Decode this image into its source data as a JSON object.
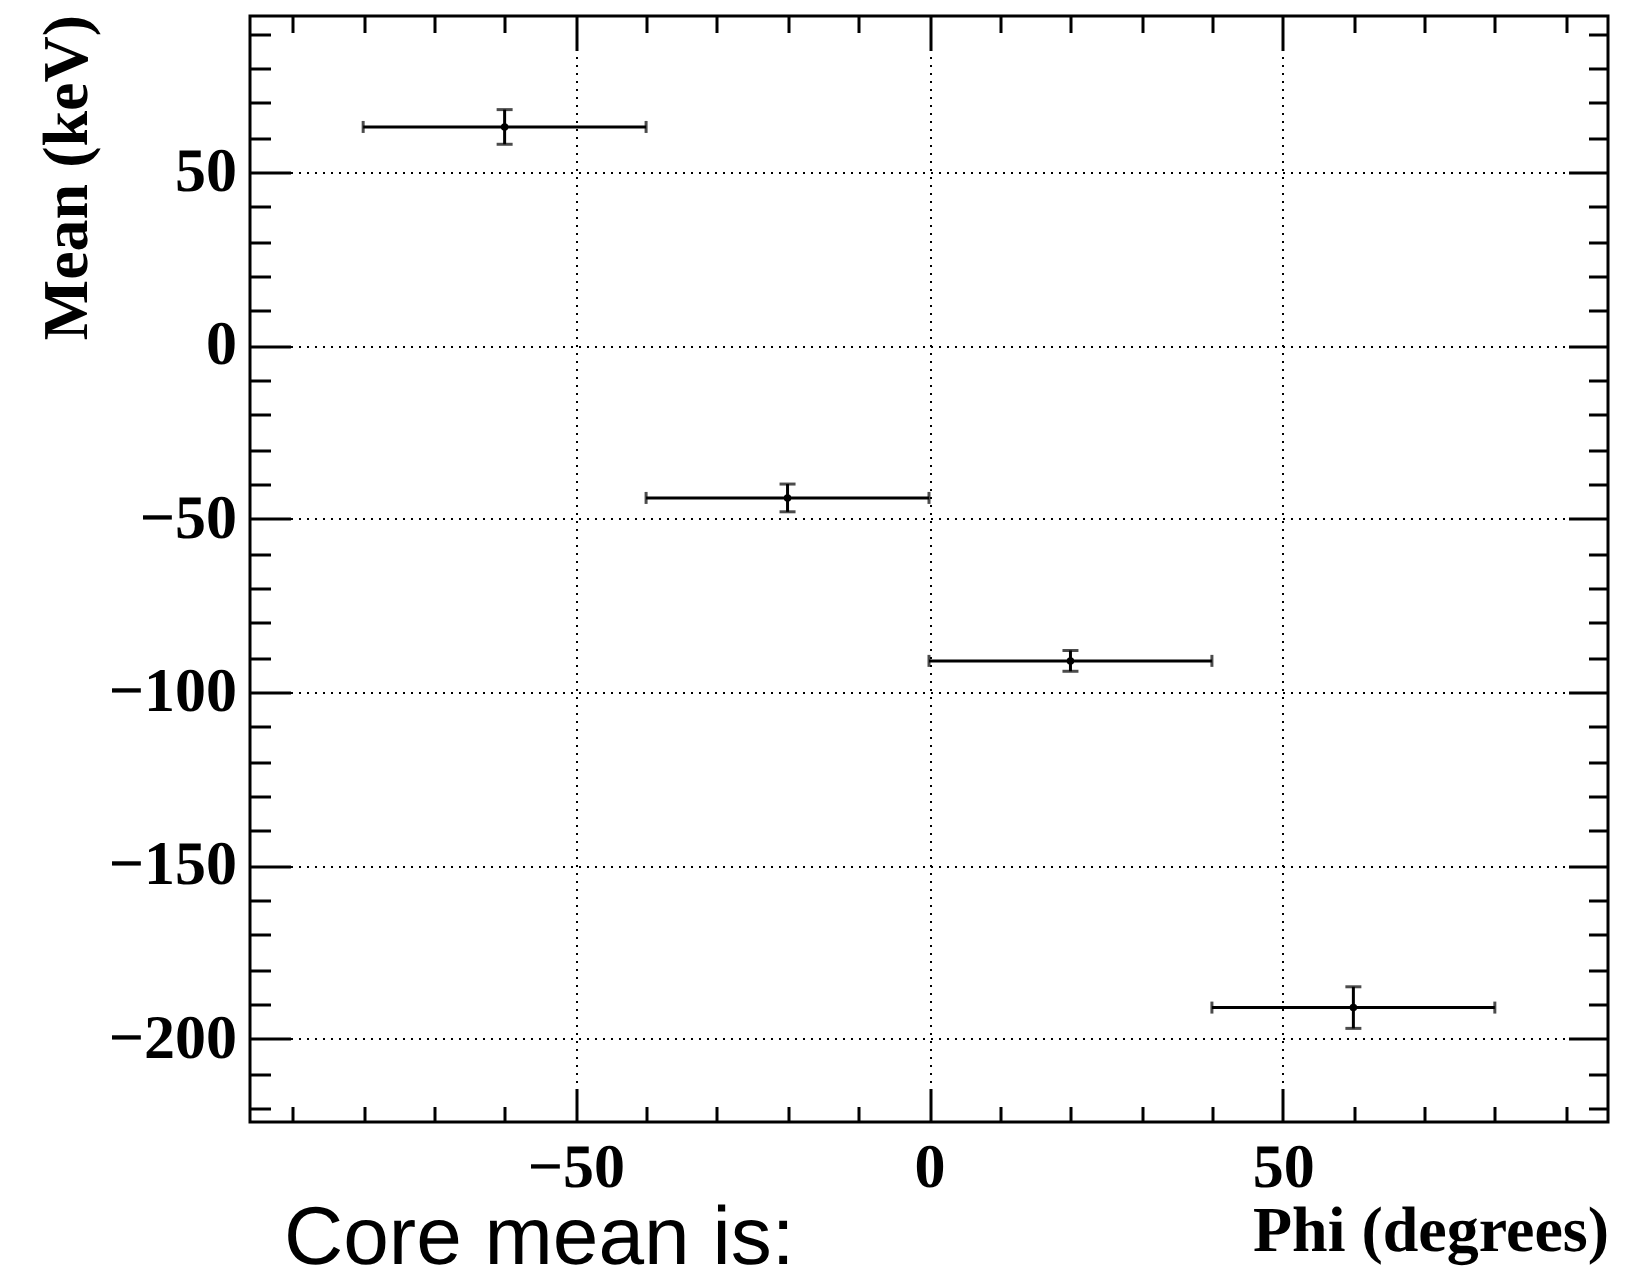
{
  "chart_data": {
    "type": "scatter",
    "xlabel": "Phi (degrees)",
    "ylabel": "Mean (keV)",
    "annotations": [
      "Core mean is:"
    ],
    "x": [
      -60,
      -20,
      20,
      60
    ],
    "values": [
      63,
      -44,
      -91,
      -191
    ],
    "errors": [
      5,
      4,
      3,
      6
    ],
    "xerrors": [
      20,
      20,
      20,
      20
    ],
    "color": "#000000",
    "marker": "circle",
    "xlim": [
      -96,
      96
    ],
    "xticks": [
      {
        "value": -90,
        "label": null
      },
      {
        "value": -80,
        "label": null
      },
      {
        "value": -70,
        "label": null
      },
      {
        "value": -60,
        "label": null
      },
      -50,
      {
        "value": -40,
        "label": null
      },
      {
        "value": -30,
        "label": null
      },
      {
        "value": -20,
        "label": null
      },
      {
        "value": -10,
        "label": null
      },
      0,
      {
        "value": 10,
        "label": null
      },
      {
        "value": 20,
        "label": null
      },
      {
        "value": 30,
        "label": null
      },
      {
        "value": 40,
        "label": null
      },
      50,
      {
        "value": 60,
        "label": null
      },
      {
        "value": 70,
        "label": null
      },
      {
        "value": 80,
        "label": null
      },
      {
        "value": 90,
        "label": null
      }
    ],
    "ylim": [
      -224,
      95
    ],
    "yticks": [
      {
        "value": -220,
        "label": null
      },
      {
        "value": -210,
        "label": null
      },
      -200,
      {
        "value": -190,
        "label": null
      },
      {
        "value": -180,
        "label": null
      },
      {
        "value": -170,
        "label": null
      },
      {
        "value": -160,
        "label": null
      },
      -150,
      {
        "value": -140,
        "label": null
      },
      {
        "value": -130,
        "label": null
      },
      {
        "value": -120,
        "label": null
      },
      {
        "value": -110,
        "label": null
      },
      -100,
      {
        "value": -90,
        "label": null
      },
      {
        "value": -80,
        "label": null
      },
      {
        "value": -70,
        "label": null
      },
      {
        "value": -60,
        "label": null
      },
      -50,
      {
        "value": -40,
        "label": null
      },
      {
        "value": -30,
        "label": null
      },
      {
        "value": -20,
        "label": null
      },
      {
        "value": -10,
        "label": null
      },
      0,
      {
        "value": 10,
        "label": null
      },
      {
        "value": 20,
        "label": null
      },
      {
        "value": 30,
        "label": null
      },
      {
        "value": 40,
        "label": null
      },
      50,
      {
        "value": 60,
        "label": null
      },
      {
        "value": 70,
        "label": null
      },
      {
        "value": 80,
        "label": null
      },
      {
        "value": 90,
        "label": null
      }
    ],
    "grid": true
  }
}
